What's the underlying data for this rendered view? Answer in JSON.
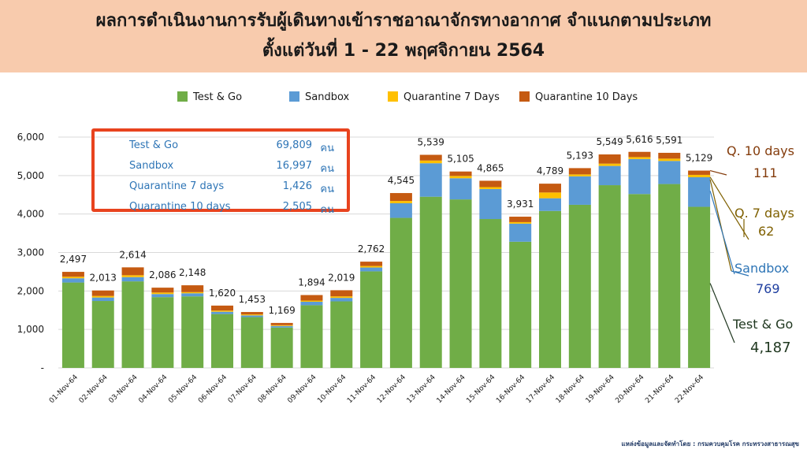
{
  "header": {
    "title_line1": "ผลการดำเนินงานการรับผู้เดินทางเข้าราชอาณาจักรทางอากาศ จำแนกตามประเภท",
    "title_line2": "ตั้งแต่วันที่  1 - 22  พฤศจิกายน 2564"
  },
  "summary": {
    "rows": [
      {
        "label": "Test & Go",
        "value": "69,809",
        "unit": "คน"
      },
      {
        "label": "Sandbox",
        "value": "16,997",
        "unit": "คน"
      },
      {
        "label": "Quarantine 7 days",
        "value": "1,426",
        "unit": "คน"
      },
      {
        "label": "Quarantine 10 days",
        "value": "2,505",
        "unit": "คน"
      }
    ]
  },
  "annotations": {
    "q10_label": "Q. 10 days",
    "q10_value": "111",
    "q7_label": "Q. 7 days",
    "q7_value": "62",
    "sandbox_label": "Sandbox",
    "sandbox_value": "769",
    "testgo_label": "Test & Go",
    "testgo_value": "4,187"
  },
  "source": "แหล่งข้อมูลและจัดทำโดย : กรมควบคุมโรค กระทรวงสาธารณสุข",
  "chart_data": {
    "type": "bar",
    "stacked": true,
    "categories": [
      "01-Nov-64",
      "02-Nov-64",
      "03-Nov-64",
      "04-Nov-64",
      "05-Nov-64",
      "06-Nov-64",
      "07-Nov-64",
      "08-Nov-64",
      "09-Nov-64",
      "10-Nov-64",
      "11-Nov-64",
      "12-Nov-64",
      "13-Nov-64",
      "14-Nov-64",
      "15-Nov-64",
      "16-Nov-64",
      "17-Nov-64",
      "18-Nov-64",
      "19-Nov-64",
      "20-Nov-64",
      "21-Nov-64",
      "22-Nov-64"
    ],
    "totals": [
      2497,
      2013,
      2614,
      2086,
      2148,
      1620,
      1453,
      1169,
      1894,
      2019,
      2762,
      4545,
      5539,
      5105,
      4865,
      3931,
      4789,
      5193,
      5549,
      5616,
      5591,
      5129
    ],
    "total_labels": [
      "2,497",
      "2,013",
      "2,614",
      "2,086",
      "2,148",
      "1,620",
      "1,453",
      "1,169",
      "1,894",
      "2,019",
      "2,762",
      "4,545",
      "5,539",
      "5,105",
      "4,865",
      "3,931",
      "4,789",
      "5,193",
      "5,549",
      "5,616",
      "5,591",
      "5,129"
    ],
    "series": [
      {
        "name": "Test & Go",
        "color": "#70ad47",
        "values": [
          2220,
          1740,
          2250,
          1840,
          1860,
          1400,
          1320,
          1050,
          1630,
          1730,
          2510,
          3900,
          4450,
          4380,
          3870,
          3280,
          4080,
          4240,
          4750,
          4520,
          4780,
          4187
        ]
      },
      {
        "name": "Sandbox",
        "color": "#5b9bd5",
        "values": [
          110,
          90,
          110,
          80,
          80,
          60,
          45,
          40,
          90,
          90,
          100,
          380,
          870,
          550,
          780,
          470,
          330,
          740,
          500,
          910,
          600,
          769
        ]
      },
      {
        "name": "Quarantine 7 Days",
        "color": "#ffc000",
        "values": [
          40,
          40,
          50,
          40,
          30,
          30,
          25,
          20,
          30,
          40,
          40,
          60,
          70,
          60,
          50,
          40,
          150,
          50,
          60,
          50,
          60,
          62
        ]
      },
      {
        "name": "Quarantine 10 Days",
        "color": "#c55a11",
        "values": [
          127,
          143,
          204,
          126,
          178,
          130,
          63,
          59,
          144,
          159,
          112,
          205,
          149,
          115,
          165,
          141,
          229,
          163,
          239,
          136,
          151,
          111
        ]
      }
    ],
    "y_ticks": [
      0,
      1000,
      2000,
      3000,
      4000,
      5000,
      6000
    ],
    "y_tick_labels": [
      "-",
      "1,000",
      "2,000",
      "3,000",
      "4,000",
      "5,000",
      "6,000"
    ],
    "ylim": [
      0,
      6000
    ],
    "legend_position": "top-center",
    "grid": true
  }
}
